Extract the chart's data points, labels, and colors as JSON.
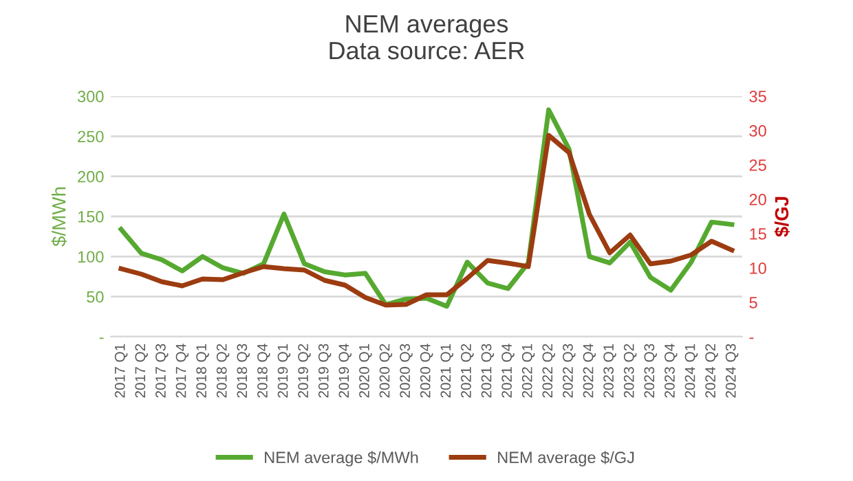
{
  "chart_data": {
    "type": "line",
    "title": "NEM averages\nData source: AER",
    "ylabel": "$/MWh",
    "y2label": "$/GJ",
    "categories": [
      "2017 Q1",
      "2017 Q2",
      "2017 Q3",
      "2017 Q4",
      "2018 Q1",
      "2018 Q2",
      "2018 Q3",
      "2018 Q4",
      "2019 Q1",
      "2019 Q2",
      "2019 Q3",
      "2019 Q4",
      "2020 Q1",
      "2020 Q2",
      "2020 Q3",
      "2020 Q4",
      "2021 Q1",
      "2021 Q2",
      "2021 Q3",
      "2021 Q4",
      "2022 Q1",
      "2022 Q2",
      "2022 Q3",
      "2022 Q4",
      "2023 Q1",
      "2023 Q2",
      "2023 Q3",
      "2023 Q4",
      "2024 Q1",
      "2024 Q2",
      "2024 Q3"
    ],
    "series": [
      {
        "name": "NEM average $/MWh",
        "color": "#56a930",
        "values": [
          134,
          104,
          96,
          82,
          100,
          86,
          79,
          91,
          153,
          91,
          81,
          77,
          79,
          40,
          47,
          48,
          38,
          93,
          67,
          60,
          92,
          283,
          234,
          100,
          92,
          118,
          74,
          58,
          93,
          143,
          140
        ]
      },
      {
        "name": "NEM average $/GJ",
        "color": "#9c3c10",
        "axis": "y2",
        "values": [
          9.9,
          9.1,
          8.0,
          7.4,
          8.4,
          8.3,
          9.3,
          10.2,
          9.9,
          9.7,
          8.2,
          7.5,
          5.7,
          4.6,
          4.7,
          6.1,
          6.1,
          8.5,
          11.1,
          10.7,
          10.2,
          29.3,
          26.8,
          17.8,
          12.2,
          14.8,
          10.6,
          11.0,
          11.9,
          13.9,
          12.6
        ]
      }
    ],
    "ylim": [
      0,
      300
    ],
    "yticks": [
      {
        "value": 0,
        "label": "-"
      },
      50,
      100,
      150,
      200,
      250,
      300
    ],
    "y2lim": [
      0,
      35
    ],
    "y2ticks": [
      {
        "value": 0,
        "label": "-"
      },
      5,
      10,
      15,
      20,
      25,
      30,
      35
    ],
    "grid": "y",
    "legend": "bottom",
    "marker": "none",
    "line_style": "solid"
  }
}
